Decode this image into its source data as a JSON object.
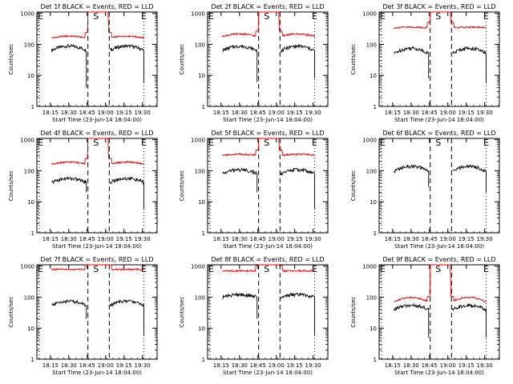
{
  "figure": {
    "xlabel": "Start Time (23-Jun-14 18:04:00)",
    "ylabel": "Counts/sec",
    "time_start_hours": 18.0667,
    "time_end_hours": 19.7,
    "x_tick_labels": [
      "18:15",
      "18:30",
      "18:45",
      "19:00",
      "19:15",
      "19:30"
    ],
    "x_ticks_hours": [
      18.25,
      18.5,
      18.75,
      19.0,
      19.25,
      19.5
    ],
    "y_tick_labels": [
      "1",
      "10",
      "100",
      "1000"
    ],
    "y_ticks": [
      1,
      10,
      100,
      1000
    ],
    "ylim": [
      1,
      1100
    ],
    "yscale": "log",
    "markers": {
      "E_left": {
        "label": "E",
        "hours": 18.1,
        "line": "dotted"
      },
      "S": {
        "label": "S",
        "hours": 18.87,
        "line": "none"
      },
      "dash_1": {
        "hours": 18.76,
        "line": "dashed"
      },
      "dash_2": {
        "hours": 19.05,
        "line": "dashed"
      },
      "E_right": {
        "label": "E",
        "hours": 19.52,
        "line": "dotted"
      }
    },
    "colors": {
      "events": "#000000",
      "lld": "#e00000"
    }
  },
  "chart_data": [
    {
      "type": "line",
      "title": "Det 1f BLACK = Events, RED = LLD",
      "series": [
        {
          "name": "Events",
          "color": "#000000",
          "level": 65,
          "bump": 1.35,
          "cutoff_left": 4,
          "cutoff_right": 6
        },
        {
          "name": "LLD",
          "color": "#e00000",
          "level": 160,
          "bump": 1.15
        }
      ]
    },
    {
      "type": "line",
      "title": "Det 2f BLACK = Events, RED = LLD",
      "series": [
        {
          "name": "Events",
          "color": "#000000",
          "level": 62,
          "bump": 1.4,
          "cutoff_left": 6,
          "cutoff_right": 8
        },
        {
          "name": "LLD",
          "color": "#e00000",
          "level": 180,
          "bump": 1.2
        }
      ]
    },
    {
      "type": "line",
      "title": "Det 3f BLACK = Events, RED = LLD",
      "series": [
        {
          "name": "Events",
          "color": "#000000",
          "level": 50,
          "bump": 1.5,
          "cutoff_left": 8,
          "cutoff_right": 6
        },
        {
          "name": "LLD",
          "color": "#e00000",
          "level": 340,
          "bump": 1.05
        }
      ]
    },
    {
      "type": "line",
      "title": "Det 4f BLACK = Events, RED = LLD",
      "series": [
        {
          "name": "Events",
          "color": "#000000",
          "level": 42,
          "bump": 1.35,
          "cutoff_left": 20,
          "cutoff_right": 6
        },
        {
          "name": "LLD",
          "color": "#e00000",
          "level": 165,
          "bump": 1.15
        }
      ]
    },
    {
      "type": "line",
      "title": "Det 5f BLACK = Events, RED = LLD",
      "series": [
        {
          "name": "Events",
          "color": "#000000",
          "level": 80,
          "bump": 1.35,
          "cutoff_left": 20,
          "cutoff_right": 6
        },
        {
          "name": "LLD",
          "color": "#e00000",
          "level": 310,
          "bump": 1.1
        }
      ]
    },
    {
      "type": "line",
      "title": "Det 6f BLACK = Events, RED = LLD",
      "series": [
        {
          "name": "Events",
          "color": "#000000",
          "level": 95,
          "bump": 1.45,
          "cutoff_left": 30,
          "cutoff_right": 20
        }
      ]
    },
    {
      "type": "line",
      "title": "Det 7f BLACK = Events, RED = LLD",
      "series": [
        {
          "name": "Events",
          "color": "#000000",
          "level": 55,
          "bump": 1.35,
          "cutoff_left": 20,
          "cutoff_right": 6
        },
        {
          "name": "LLD",
          "color": "#e00000",
          "level": 780,
          "bump": 1.0
        }
      ]
    },
    {
      "type": "line",
      "title": "Det 8f BLACK = Events, RED = LLD",
      "series": [
        {
          "name": "Events",
          "color": "#000000",
          "level": 100,
          "bump": 1.2,
          "cutoff_left": 20,
          "cutoff_right": 6
        },
        {
          "name": "LLD",
          "color": "#e00000",
          "level": 700,
          "bump": 1.0
        }
      ]
    },
    {
      "type": "line",
      "title": "Det 9f BLACK = Events, RED = LLD",
      "series": [
        {
          "name": "Events",
          "color": "#000000",
          "level": 40,
          "bump": 1.35,
          "cutoff_left": 5,
          "cutoff_right": 5
        },
        {
          "name": "LLD",
          "color": "#e00000",
          "level": 70,
          "bump": 1.4
        }
      ]
    }
  ]
}
